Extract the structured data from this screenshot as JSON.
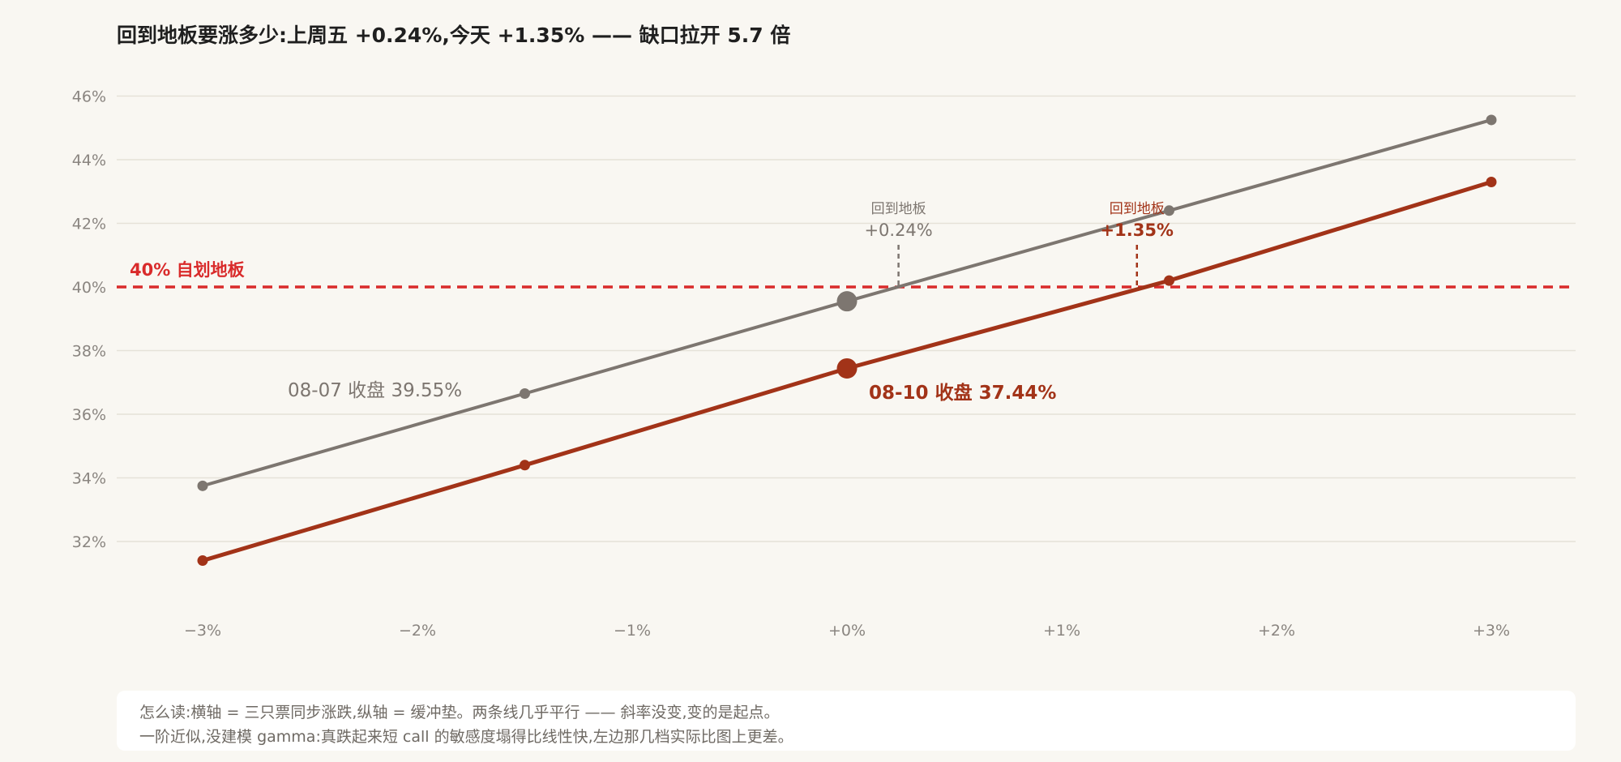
{
  "title": "回到地板要涨多少:上周五 +0.24%,今天 +1.35% —— 缺口拉开 5.7 倍",
  "colors": {
    "background": "#f9f7f2",
    "grid": "#e6e2d8",
    "floor": "#d92b2b",
    "friday_series": "#7d7670",
    "today_series": "#a23318",
    "tick_text": "#8a8580"
  },
  "chart_data": {
    "type": "line",
    "xlabel": "",
    "ylabel": "",
    "x_ticks": [
      "−3%",
      "−2%",
      "−1%",
      "+0%",
      "+1%",
      "+2%",
      "+3%"
    ],
    "x_tick_values": [
      -3,
      -2,
      -1,
      0,
      1,
      2,
      3
    ],
    "y_ticks": [
      "32%",
      "34%",
      "36%",
      "38%",
      "40%",
      "42%",
      "44%",
      "46%"
    ],
    "y_tick_values": [
      32,
      34,
      36,
      38,
      40,
      42,
      44,
      46
    ],
    "xlim": [
      -3.4,
      3.4
    ],
    "ylim": [
      30,
      47
    ],
    "grid": true,
    "series": [
      {
        "label": "08-07 收盘 39.55%",
        "x": [
          -3,
          -1.5,
          0,
          1.5,
          3
        ],
        "y": [
          33.75,
          36.65,
          39.55,
          42.4,
          45.25
        ],
        "highlight_x": 0
      },
      {
        "label": "08-10 收盘 37.44%",
        "x": [
          -3,
          -1.5,
          0,
          1.5,
          3
        ],
        "y": [
          31.4,
          34.4,
          37.44,
          40.2,
          43.3
        ],
        "highlight_x": 0
      }
    ],
    "reference_line": {
      "y": 40,
      "label": "40% 自划地板"
    },
    "crossings": [
      {
        "x": 0.24,
        "label_line1": "回到地板",
        "label_line2": "+0.24%"
      },
      {
        "x": 1.35,
        "label_line1": "回到地板",
        "label_line2": "+1.35%"
      }
    ]
  },
  "note": {
    "line1": "怎么读:横轴 = 三只票同步涨跌,纵轴 = 缓冲垫。两条线几乎平行 —— 斜率没变,变的是起点。",
    "line2": "一阶近似,没建模 gamma:真跌起来短 call 的敏感度塌得比线性快,左边那几档实际比图上更差。"
  }
}
